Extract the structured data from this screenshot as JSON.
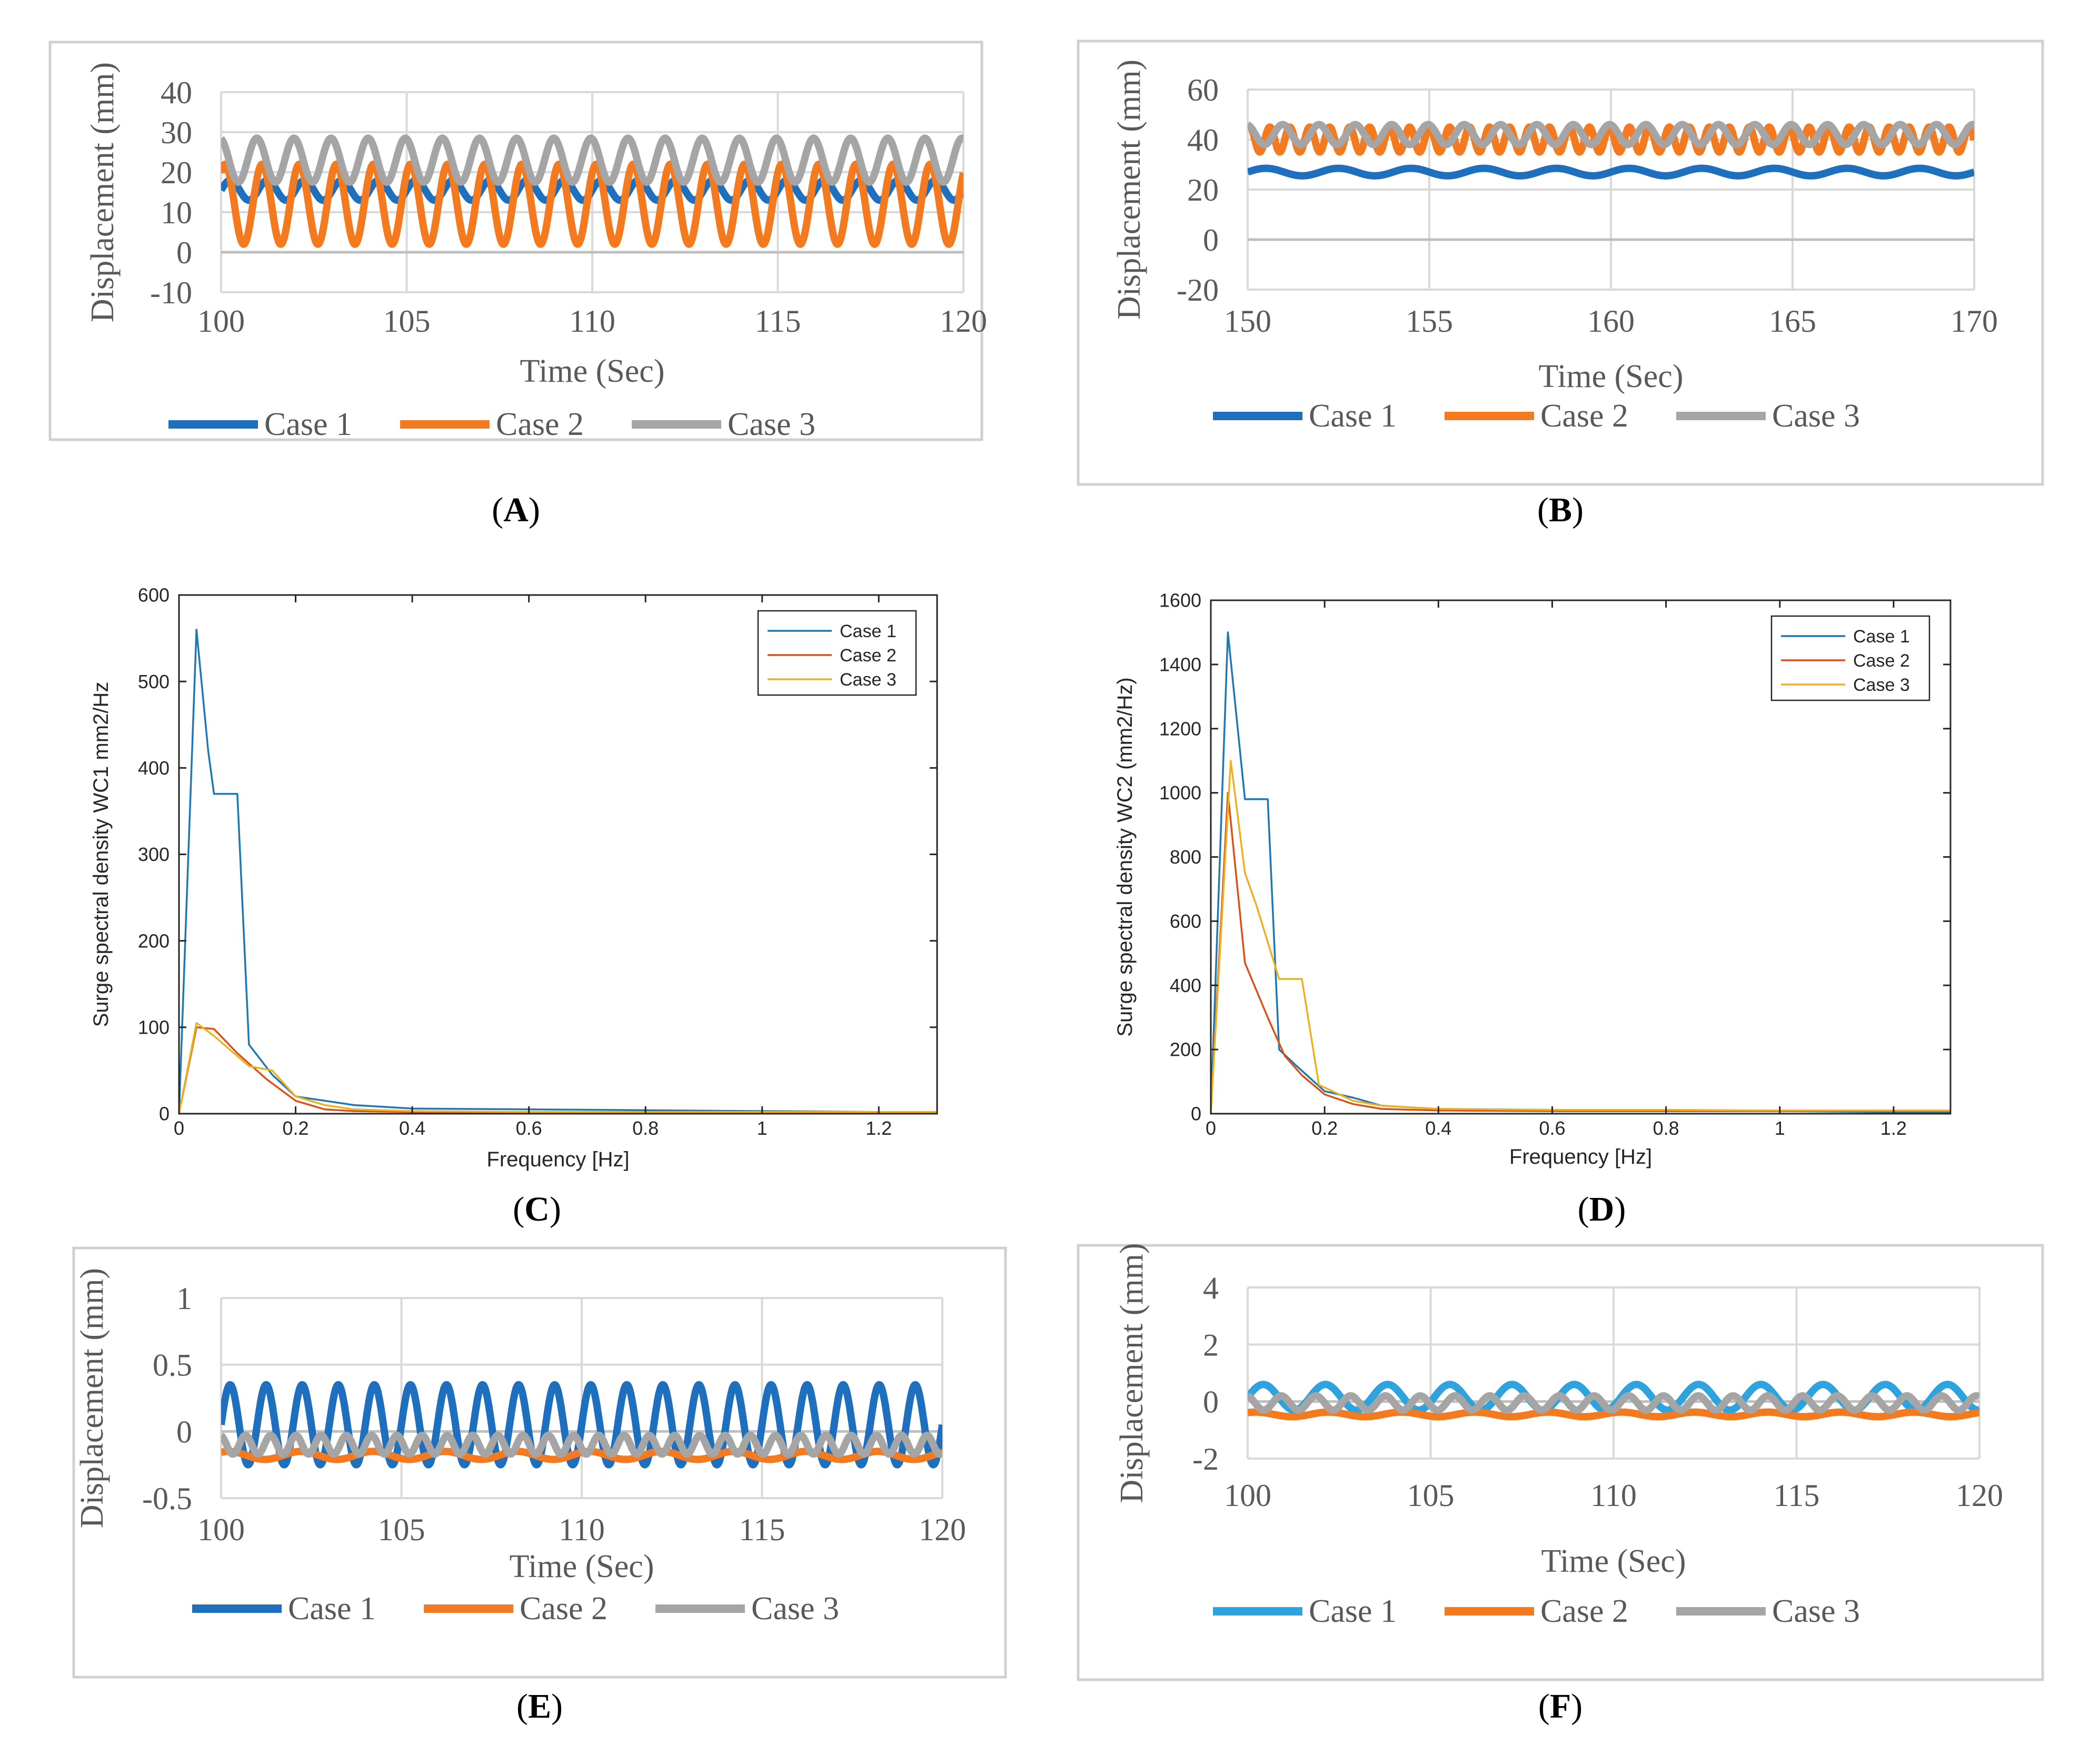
{
  "chart_data": [
    {
      "type": "line",
      "panel_label": "A",
      "xlabel": "Time (Sec)",
      "ylabel": "Displacement (mm)",
      "xlim": [
        100,
        120
      ],
      "ylim": [
        -10,
        40
      ],
      "xticks": [
        "100",
        "105",
        "110",
        "115",
        "120"
      ],
      "yticks": [
        "-10",
        "0",
        "10",
        "20",
        "30",
        "40"
      ],
      "grid": true,
      "legend_position": "bottom",
      "series": [
        {
          "name": "Case 1",
          "color": "#1F6FBF",
          "mean": 15.5,
          "amplitude": 2.5,
          "period": 1.0
        },
        {
          "name": "Case 2",
          "color": "#F47A20",
          "mean": 12,
          "amplitude": 10,
          "period": 1.0
        },
        {
          "name": "Case 3",
          "color": "#A5A5A5",
          "mean": 23,
          "amplitude": 5.5,
          "period": 1.0
        }
      ]
    },
    {
      "type": "line",
      "panel_label": "B",
      "xlabel": "Time (Sec)",
      "ylabel": "Displacement (mm)",
      "xlim": [
        150,
        170
      ],
      "ylim": [
        -20,
        60
      ],
      "xticks": [
        "150",
        "155",
        "160",
        "165",
        "170"
      ],
      "yticks": [
        "-20",
        "0",
        "20",
        "40",
        "60"
      ],
      "grid": true,
      "legend_position": "bottom",
      "series": [
        {
          "name": "Case 1",
          "color": "#1F6FBF",
          "mean": 27,
          "amplitude": 1.5,
          "period": 2.0
        },
        {
          "name": "Case 2",
          "color": "#F47A20",
          "mean": 40,
          "amplitude": 5,
          "period": 0.55
        },
        {
          "name": "Case 3",
          "color": "#A5A5A5",
          "mean": 42,
          "amplitude": 4,
          "period": 1.0
        }
      ]
    },
    {
      "type": "line",
      "panel_label": "C",
      "xlabel": "Frequency [Hz]",
      "ylabel": "Surge spectral density WC1 mm2/Hz",
      "xlim": [
        0,
        1.3
      ],
      "ylim": [
        0,
        600
      ],
      "xticks": [
        "0",
        "0.2",
        "0.4",
        "0.6",
        "0.8",
        "1",
        "1.2"
      ],
      "yticks": [
        "0",
        "100",
        "200",
        "300",
        "400",
        "500",
        "600"
      ],
      "grid": false,
      "legend_position": "top-right",
      "series": [
        {
          "name": "Case 1",
          "color": "#1F77B4",
          "x": [
            0,
            0.03,
            0.05,
            0.06,
            0.1,
            0.12,
            0.16,
            0.2,
            0.25,
            0.3,
            0.4,
            0.6,
            0.8,
            1.0,
            1.2,
            1.3
          ],
          "y": [
            0,
            560,
            420,
            370,
            370,
            80,
            45,
            20,
            15,
            10,
            6,
            5,
            4,
            3,
            2,
            2
          ]
        },
        {
          "name": "Case 2",
          "color": "#D95319",
          "x": [
            0,
            0.03,
            0.06,
            0.1,
            0.15,
            0.2,
            0.25,
            0.3,
            0.4,
            0.6,
            0.8,
            1.0,
            1.2,
            1.3
          ],
          "y": [
            0,
            100,
            98,
            70,
            40,
            15,
            5,
            3,
            2,
            1,
            1,
            1,
            1,
            1
          ]
        },
        {
          "name": "Case 3",
          "color": "#EDB120",
          "x": [
            0,
            0.03,
            0.06,
            0.12,
            0.16,
            0.2,
            0.25,
            0.3,
            0.4,
            0.6,
            0.8,
            1.0,
            1.2,
            1.3
          ],
          "y": [
            0,
            105,
            90,
            55,
            50,
            20,
            10,
            5,
            3,
            2,
            2,
            2,
            2,
            2
          ]
        }
      ]
    },
    {
      "type": "line",
      "panel_label": "D",
      "xlabel": "Frequency [Hz]",
      "ylabel": "Surge spectral density WC2 (mm2/Hz)",
      "xlim": [
        0,
        1.3
      ],
      "ylim": [
        0,
        1600
      ],
      "xticks": [
        "0",
        "0.2",
        "0.4",
        "0.6",
        "0.8",
        "1",
        "1.2"
      ],
      "yticks": [
        "0",
        "200",
        "400",
        "600",
        "800",
        "1000",
        "1200",
        "1400",
        "1600"
      ],
      "grid": false,
      "legend_position": "top-right",
      "series": [
        {
          "name": "Case 1",
          "color": "#1F77B4",
          "x": [
            0,
            0.03,
            0.06,
            0.1,
            0.12,
            0.15,
            0.2,
            0.25,
            0.3,
            0.4,
            0.6,
            0.8,
            1.0,
            1.2,
            1.3
          ],
          "y": [
            0,
            1500,
            980,
            980,
            200,
            150,
            70,
            50,
            25,
            15,
            12,
            10,
            8,
            5,
            5
          ]
        },
        {
          "name": "Case 2",
          "color": "#D95319",
          "x": [
            0,
            0.03,
            0.06,
            0.1,
            0.13,
            0.16,
            0.2,
            0.25,
            0.3,
            0.4,
            0.6,
            0.8,
            1.0,
            1.2,
            1.3
          ],
          "y": [
            0,
            1000,
            470,
            300,
            180,
            120,
            60,
            30,
            15,
            10,
            8,
            8,
            8,
            8,
            8
          ]
        },
        {
          "name": "Case 3",
          "color": "#EDB120",
          "x": [
            0,
            0.035,
            0.06,
            0.08,
            0.12,
            0.16,
            0.19,
            0.25,
            0.3,
            0.4,
            0.6,
            0.8,
            1.0,
            1.2,
            1.3
          ],
          "y": [
            0,
            1100,
            750,
            650,
            420,
            420,
            90,
            40,
            25,
            15,
            12,
            12,
            10,
            10,
            10
          ]
        }
      ]
    },
    {
      "type": "line",
      "panel_label": "E",
      "xlabel": "Time (Sec)",
      "ylabel": "Displacement (mm)",
      "xlim": [
        100,
        120
      ],
      "ylim": [
        -0.5,
        1
      ],
      "xticks": [
        "100",
        "105",
        "110",
        "115",
        "120"
      ],
      "yticks": [
        "-0.5",
        "0",
        "0.5",
        "1"
      ],
      "grid": true,
      "legend_position": "bottom",
      "series": [
        {
          "name": "Case 1",
          "color": "#1F6FBF",
          "mean": 0.05,
          "amplitude": 0.3,
          "period": 1.0
        },
        {
          "name": "Case 2",
          "color": "#F47A20",
          "mean": -0.18,
          "amplitude": 0.03,
          "period": 2.0
        },
        {
          "name": "Case 3",
          "color": "#A5A5A5",
          "mean": -0.1,
          "amplitude": 0.07,
          "period": 0.7
        }
      ]
    },
    {
      "type": "line",
      "panel_label": "F",
      "xlabel": "Time (Sec)",
      "ylabel": "Displacement (mm)",
      "xlim": [
        100,
        120
      ],
      "ylim": [
        -2,
        4
      ],
      "xticks": [
        "100",
        "105",
        "110",
        "115",
        "120"
      ],
      "yticks": [
        "-2",
        "0",
        "2",
        "4"
      ],
      "grid": true,
      "legend_position": "bottom",
      "series": [
        {
          "name": "Case 1",
          "color": "#2EA3DD",
          "mean": 0.15,
          "amplitude": 0.45,
          "period": 1.7
        },
        {
          "name": "Case 2",
          "color": "#F47A20",
          "mean": -0.45,
          "amplitude": 0.08,
          "period": 2.0
        },
        {
          "name": "Case 3",
          "color": "#A5A5A5",
          "mean": -0.05,
          "amplitude": 0.25,
          "period": 0.95
        }
      ]
    }
  ]
}
